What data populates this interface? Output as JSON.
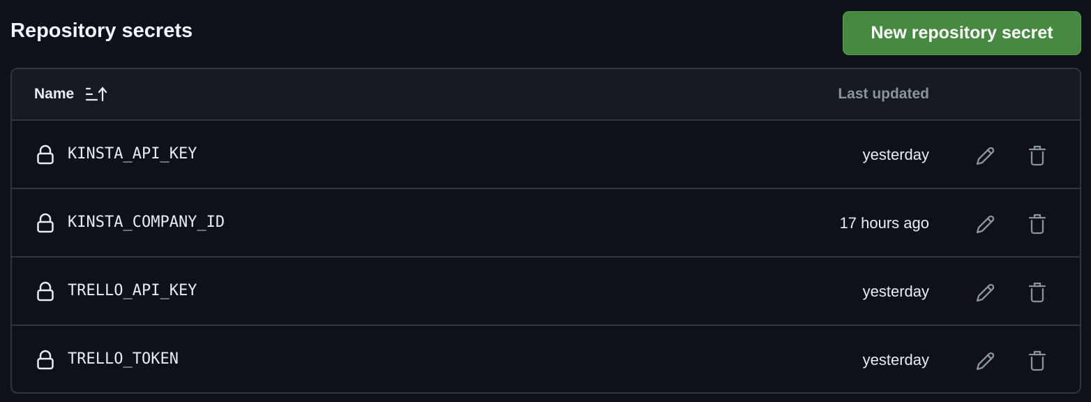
{
  "header": {
    "title": "Repository secrets",
    "new_button": "New repository secret"
  },
  "table": {
    "columns": {
      "name": "Name",
      "last_updated": "Last updated"
    },
    "rows": [
      {
        "name": "KINSTA_API_KEY",
        "updated": "yesterday"
      },
      {
        "name": "KINSTA_COMPANY_ID",
        "updated": "17 hours ago"
      },
      {
        "name": "TRELLO_API_KEY",
        "updated": "yesterday"
      },
      {
        "name": "TRELLO_TOKEN",
        "updated": "yesterday"
      }
    ]
  },
  "colors": {
    "accent": "#468a41",
    "background": "#0e1117",
    "border": "#30363d"
  }
}
